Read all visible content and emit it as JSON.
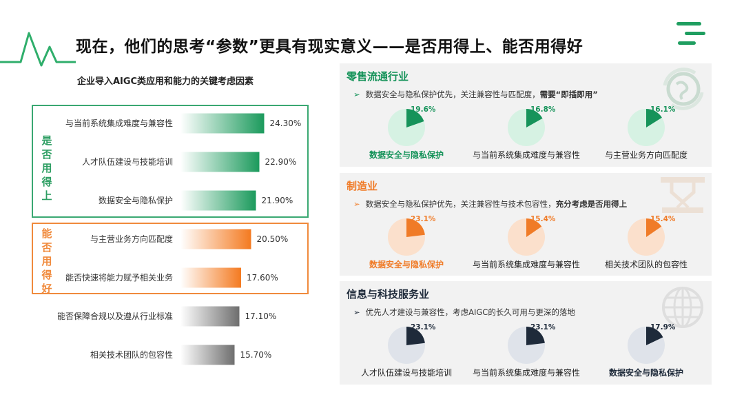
{
  "header": {
    "title": "现在，他们的思考“参数”更具有现实意义——是否用得上、能否用得好"
  },
  "colors": {
    "green": "#16935a",
    "orange": "#f07b27",
    "navy": "#1e2a3a",
    "gray": "#777777"
  },
  "groups": {
    "usable": "是否用得上",
    "useful": "能否用得好"
  },
  "chart_data": [
    {
      "type": "bar",
      "orientation": "horizontal",
      "title": "企业导入AIGC类应用和能力的关键考虑因素",
      "categories": [
        "与当前系统集成难度与兼容性",
        "人才队伍建设与技能培训",
        "数据安全与隐私保护",
        "与主营业务方向匹配度",
        "能否快速将能力赋予相关业务",
        "能否保障合规以及遵从行业标准",
        "相关技术团队的包容性"
      ],
      "values": [
        24.3,
        22.9,
        21.9,
        20.5,
        17.6,
        17.1,
        15.7
      ],
      "value_labels": [
        "24.30%",
        "22.90%",
        "21.90%",
        "20.50%",
        "17.60%",
        "17.10%",
        "15.70%"
      ],
      "bar_groups": [
        "green",
        "green",
        "green",
        "orange",
        "orange",
        "gray",
        "gray"
      ]
    },
    {
      "type": "pie",
      "title": "零售流通行业",
      "note": {
        "text": "数据安全与隐私保护优先，关注兼容性与匹配度，",
        "bold": "需要“即插即用”"
      },
      "color": "green",
      "slices": [
        {
          "label": "数据安全与隐私保护",
          "value": 19.6,
          "text": "19.6%",
          "highlight": true
        },
        {
          "label": "与当前系统集成难度与兼容性",
          "value": 16.8,
          "text": "16.8%",
          "highlight": false
        },
        {
          "label": "与主营业务方向匹配度",
          "value": 16.1,
          "text": "16.1%",
          "highlight": false
        }
      ]
    },
    {
      "type": "pie",
      "title": "制造业",
      "note": {
        "text": "数据安全与隐私保护优先，关注兼容性与技术包容性，",
        "bold": "充分考虑是否用得上"
      },
      "color": "orange",
      "slices": [
        {
          "label": "数据安全与隐私保护",
          "value": 23.1,
          "text": "23.1%",
          "highlight": true
        },
        {
          "label": "与当前系统集成难度与兼容性",
          "value": 15.4,
          "text": "15.4%",
          "highlight": false
        },
        {
          "label": "相关技术团队的包容性",
          "value": 15.4,
          "text": "15.4%",
          "highlight": false
        }
      ]
    },
    {
      "type": "pie",
      "title": "信息与科技服务业",
      "note": {
        "text": "优先人才建设与兼容性，考虑AIGC的长久可用与更深的落地",
        "bold": ""
      },
      "color": "navy",
      "slices": [
        {
          "label": "人才队伍建设与技能培训",
          "value": 23.1,
          "text": "23.1%",
          "highlight": false
        },
        {
          "label": "与当前系统集成难度与兼容性",
          "value": 23.1,
          "text": "23.1%",
          "highlight": false
        },
        {
          "label": "数据安全与隐私保护",
          "value": 17.9,
          "text": "17.9%",
          "highlight": true
        }
      ]
    }
  ]
}
